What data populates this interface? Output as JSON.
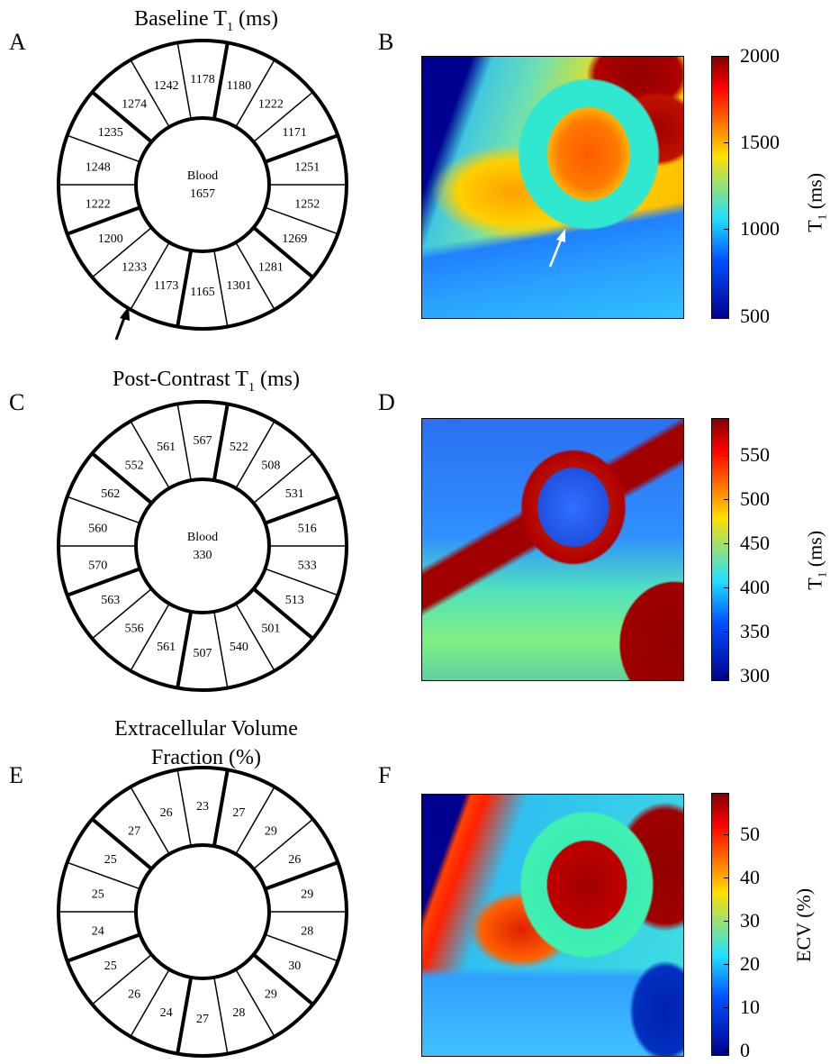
{
  "panels": {
    "A": {
      "letter": "A",
      "title_main": "Baseline T",
      "title_sub": "1",
      "title_unit": " (ms)",
      "center_label": "Blood",
      "center_value": "1657",
      "values": [
        "1178",
        "1180",
        "1222",
        "1171",
        "1251",
        "1252",
        "1269",
        "1281",
        "1301",
        "1165",
        "1173",
        "1233",
        "1200",
        "1222",
        "1248",
        "1235",
        "1274",
        "1242"
      ]
    },
    "B": {
      "letter": "B",
      "colorbar_ticks": [
        "2000",
        "1500",
        "1000",
        "500"
      ],
      "colorbar_label_main": "T",
      "colorbar_label_sub": "1",
      "colorbar_label_unit": " (ms)"
    },
    "C": {
      "letter": "C",
      "title_main": "Post-Contrast T",
      "title_sub": "1",
      "title_unit": " (ms)",
      "center_label": "Blood",
      "center_value": "330",
      "values": [
        "567",
        "522",
        "508",
        "531",
        "516",
        "533",
        "513",
        "501",
        "540",
        "507",
        "561",
        "556",
        "563",
        "570",
        "560",
        "562",
        "552",
        "561"
      ]
    },
    "D": {
      "letter": "D",
      "colorbar_ticks": [
        "550",
        "500",
        "450",
        "400",
        "350",
        "300"
      ],
      "colorbar_label_main": "T",
      "colorbar_label_sub": "1",
      "colorbar_label_unit": " (ms)"
    },
    "E": {
      "letter": "E",
      "title_line1": "Extracellular Volume",
      "title_line2": "Fraction (%)",
      "center_label": "",
      "center_value": "",
      "values": [
        "23",
        "27",
        "29",
        "26",
        "29",
        "28",
        "30",
        "29",
        "28",
        "27",
        "24",
        "26",
        "25",
        "24",
        "25",
        "25",
        "27",
        "26"
      ]
    },
    "F": {
      "letter": "F",
      "colorbar_ticks": [
        "50",
        "40",
        "30",
        "20",
        "10",
        "0"
      ],
      "colorbar_label_main": "ECV (%)"
    }
  },
  "colors": {
    "jet_dark_blue": "#00008f",
    "jet_blue": "#0050ff",
    "jet_cyan": "#20e0ff",
    "jet_yellow": "#ffe000",
    "jet_orange": "#ff7000",
    "jet_dark_red": "#800000"
  }
}
